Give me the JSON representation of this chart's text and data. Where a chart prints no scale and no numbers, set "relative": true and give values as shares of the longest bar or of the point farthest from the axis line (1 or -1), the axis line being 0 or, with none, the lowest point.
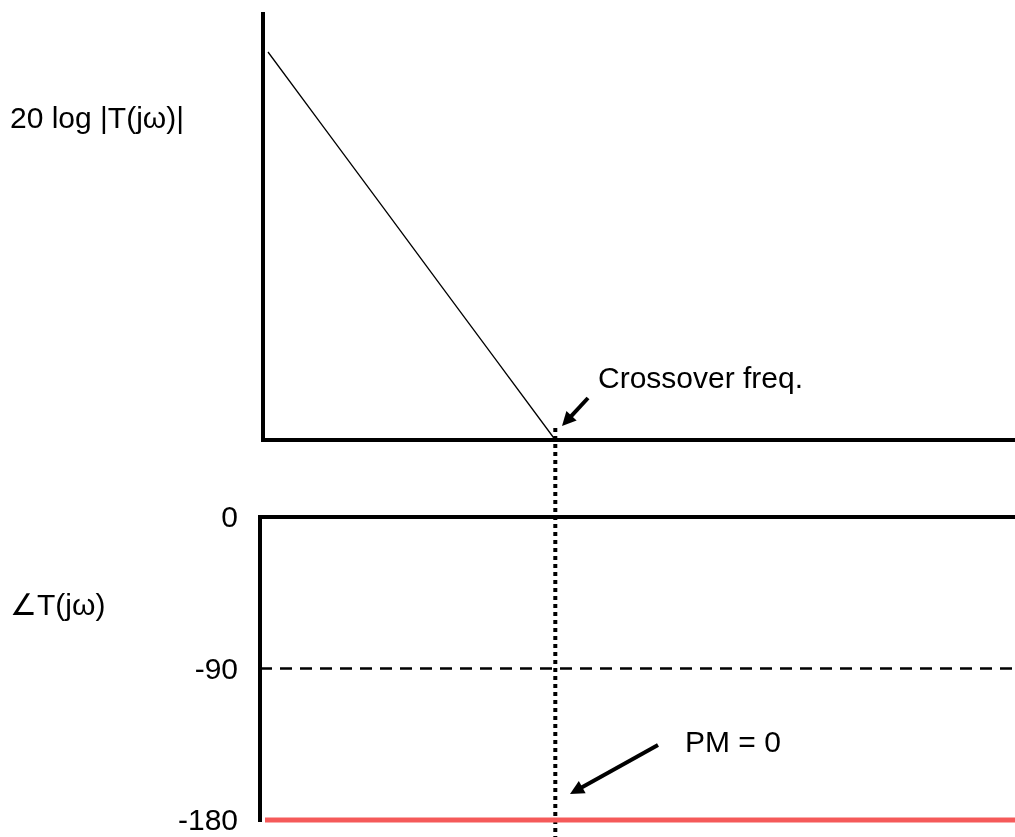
{
  "chart_data": [
    {
      "type": "line",
      "ylabel": "20 log |T(jω)|",
      "relative": true,
      "tick_labels": false,
      "categories": [
        null,
        null,
        null,
        null,
        null,
        null,
        null,
        null,
        null,
        null,
        null,
        null,
        null,
        null
      ],
      "series": [
        {
          "color": "#000000",
          "values": [
            1,
            0.8,
            0.6,
            0.4,
            0.2,
            0,
            null,
            null,
            null,
            null,
            null,
            null,
            null,
            null
          ]
        }
      ],
      "annotations": [
        "Crossover freq."
      ]
    },
    {
      "type": "line",
      "ylabel": "∠T(jω)",
      "tick_labels": "y",
      "ylim": [
        -180,
        0
      ],
      "yticks": [
        0,
        -90,
        -180
      ],
      "categories": [
        null,
        null,
        null,
        null,
        null,
        null,
        null,
        null,
        null,
        null,
        null,
        null,
        null,
        null
      ],
      "series": [
        {
          "color": "#f55a5a",
          "values": [
            -180,
            -180,
            -180,
            -180,
            -180,
            -180,
            -180,
            -180,
            -180,
            -180,
            -180,
            -180,
            -180,
            -180
          ]
        }
      ],
      "ref_lines": [
        {
          "axis": "y",
          "value": -90,
          "line_style": "dashed",
          "color": "#000000"
        }
      ],
      "annotations": [
        "PM = 0"
      ]
    }
  ]
}
